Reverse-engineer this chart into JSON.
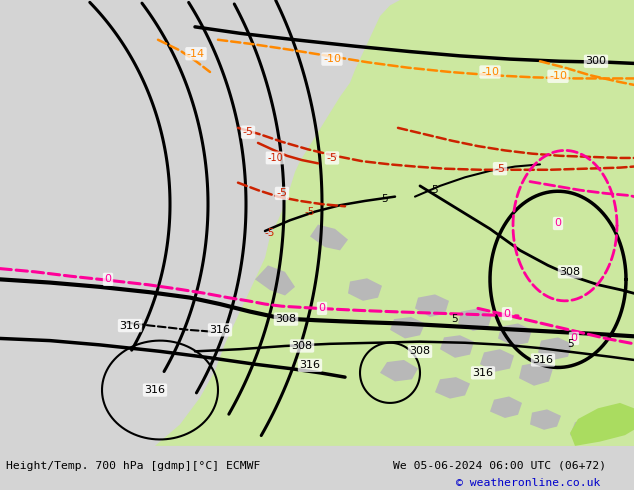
{
  "title_left": "Height/Temp. 700 hPa [gdmp][°C] ECMWF",
  "title_right": "We 05-06-2024 06:00 UTC (06+72)",
  "copyright": "© weatheronline.co.uk",
  "figsize": [
    6.34,
    4.9
  ],
  "dpi": 100,
  "bg_gray": "#d4d4d4",
  "land_green": "#cce8a0",
  "land_green_bright": "#aadc60",
  "land_gray": "#b8b8b8",
  "color_height": "#000000",
  "color_temp_neg": "#cc2200",
  "color_temp_zero": "#ff0099",
  "color_temp_warm": "#ff8800",
  "bottom_color": "#000000",
  "copy_color": "#0000cc"
}
